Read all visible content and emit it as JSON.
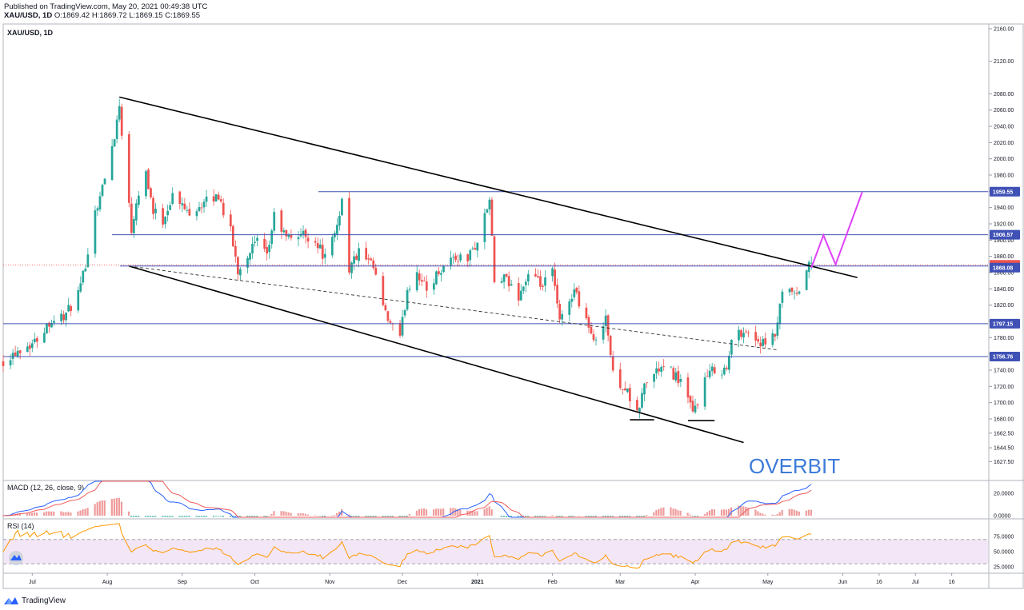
{
  "header": {
    "published_line": "Published on TradingView.com, May 20, 2021 00:49:38 UTC",
    "symbol_line": "XAU/USD, 1D",
    "ohlc_line": "O:1869.42 H:1869.72 L:1869.15 C:1869.55"
  },
  "footer": {
    "brand": "TradingView",
    "logo_icon": "tradingview-logo-icon"
  },
  "watermark": "OVERBIT",
  "colors": {
    "up": "#26a69a",
    "down": "#ef5350",
    "level_line": "#3f51b5",
    "trend_line": "#000000",
    "projection": "#e040fb",
    "watermark": "#3d7bd9",
    "macd_line": "#2962ff",
    "signal_line": "#f05858",
    "rsi_line": "#ff9800",
    "rsi_band": "#f3e6f6"
  },
  "chart_data": [
    {
      "type": "candlestick",
      "title": "XAU/USD, 1D",
      "label": "XAU/USD, 1D",
      "ylim": [
        1620,
        2165
      ],
      "y_ticks": [
        1627.5,
        1644.5,
        1662.5,
        1680.0,
        1700.0,
        1720.0,
        1740.0,
        1760.0,
        1780.0,
        1800.0,
        1820.0,
        1840.0,
        1860.0,
        1880.0,
        1900.0,
        1920.0,
        1940.0,
        1960.0,
        1980.0,
        2000.0,
        2020.0,
        2040.0,
        2060.0,
        2080.0,
        2120.0,
        2160.0
      ],
      "x_tick_labels": [
        "Jul",
        "Aug",
        "Sep",
        "Oct",
        "Nov",
        "Dec",
        "2021",
        "Feb",
        "Mar",
        "Apr",
        "May",
        "Jun",
        "16",
        "Jul",
        "16"
      ],
      "x_tick_dates": [
        "2020-07-01",
        "2020-08-01",
        "2020-09-01",
        "2020-10-01",
        "2020-11-01",
        "2020-12-01",
        "2021-01-01",
        "2021-02-01",
        "2021-03-01",
        "2021-04-01",
        "2021-05-01",
        "2021-06-01",
        "2021-06-16",
        "2021-07-01",
        "2021-07-16"
      ],
      "x_range": [
        "2020-06-19",
        "2021-07-31"
      ],
      "price_anchors": [
        [
          "2020-06-19",
          1752
        ],
        [
          "2020-06-25",
          1765
        ],
        [
          "2020-07-02",
          1775
        ],
        [
          "2020-07-08",
          1800
        ],
        [
          "2020-07-15",
          1808
        ],
        [
          "2020-07-21",
          1840
        ],
        [
          "2020-07-27",
          1935
        ],
        [
          "2020-07-31",
          1975
        ],
        [
          "2020-08-04",
          2030
        ],
        [
          "2020-08-06",
          2065
        ],
        [
          "2020-08-07",
          2035
        ],
        [
          "2020-08-11",
          1912
        ],
        [
          "2020-08-13",
          1950
        ],
        [
          "2020-08-17",
          1985
        ],
        [
          "2020-08-20",
          1935
        ],
        [
          "2020-08-24",
          1925
        ],
        [
          "2020-08-28",
          1955
        ],
        [
          "2020-09-03",
          1935
        ],
        [
          "2020-09-10",
          1945
        ],
        [
          "2020-09-16",
          1955
        ],
        [
          "2020-09-21",
          1910
        ],
        [
          "2020-09-24",
          1862
        ],
        [
          "2020-09-29",
          1888
        ],
        [
          "2020-10-02",
          1898
        ],
        [
          "2020-10-06",
          1878
        ],
        [
          "2020-10-09",
          1930
        ],
        [
          "2020-10-14",
          1902
        ],
        [
          "2020-10-20",
          1908
        ],
        [
          "2020-10-26",
          1900
        ],
        [
          "2020-10-30",
          1878
        ],
        [
          "2020-11-03",
          1905
        ],
        [
          "2020-11-06",
          1950
        ],
        [
          "2020-11-09",
          1865
        ],
        [
          "2020-11-13",
          1885
        ],
        [
          "2020-11-19",
          1865
        ],
        [
          "2020-11-24",
          1807
        ],
        [
          "2020-11-30",
          1778
        ],
        [
          "2020-12-03",
          1840
        ],
        [
          "2020-12-07",
          1862
        ],
        [
          "2020-12-11",
          1838
        ],
        [
          "2020-12-16",
          1862
        ],
        [
          "2020-12-21",
          1878
        ],
        [
          "2020-12-28",
          1878
        ],
        [
          "2021-01-01",
          1898
        ],
        [
          "2021-01-06",
          1950
        ],
        [
          "2021-01-08",
          1848
        ],
        [
          "2021-01-12",
          1852
        ],
        [
          "2021-01-18",
          1832
        ],
        [
          "2021-01-22",
          1856
        ],
        [
          "2021-01-28",
          1843
        ],
        [
          "2021-02-01",
          1862
        ],
        [
          "2021-02-04",
          1798
        ],
        [
          "2021-02-10",
          1840
        ],
        [
          "2021-02-16",
          1795
        ],
        [
          "2021-02-18",
          1772
        ],
        [
          "2021-02-23",
          1808
        ],
        [
          "2021-02-26",
          1734
        ],
        [
          "2021-03-03",
          1718
        ],
        [
          "2021-03-08",
          1684
        ],
        [
          "2021-03-11",
          1722
        ],
        [
          "2021-03-17",
          1742
        ],
        [
          "2021-03-22",
          1738
        ],
        [
          "2021-03-26",
          1727
        ],
        [
          "2021-03-31",
          1686
        ],
        [
          "2021-04-05",
          1728
        ],
        [
          "2021-04-09",
          1742
        ],
        [
          "2021-04-14",
          1740
        ],
        [
          "2021-04-16",
          1776
        ],
        [
          "2021-04-21",
          1790
        ],
        [
          "2021-04-26",
          1778
        ],
        [
          "2021-04-30",
          1770
        ],
        [
          "2021-05-04",
          1782
        ],
        [
          "2021-05-07",
          1832
        ],
        [
          "2021-05-11",
          1836
        ],
        [
          "2021-05-13",
          1828
        ],
        [
          "2021-05-17",
          1866
        ],
        [
          "2021-05-19",
          1869.55
        ]
      ],
      "horizontal_levels": [
        1959.55,
        1906.57,
        1869.55,
        1868.08,
        1797.15,
        1756.76
      ],
      "price_labels": [
        "1959.55",
        "1906.57",
        "1869.55",
        "1868.08",
        "1797.15",
        "1756.76"
      ],
      "trend_lines": [
        {
          "from": [
            "2020-08-06",
            2076
          ],
          "to": [
            "2021-06-07",
            1854
          ]
        },
        {
          "from": [
            "2020-08-10",
            1868
          ],
          "to": [
            "2021-04-21",
            1651
          ]
        }
      ],
      "dashed_trend_line": {
        "from": [
          "2020-08-10",
          1868
        ],
        "to": [
          "2021-05-05",
          1765
        ]
      },
      "double_bottom_marks": [
        {
          "from": [
            "2021-03-05",
            1679
          ],
          "to": [
            "2021-03-15",
            1679
          ]
        },
        {
          "from": [
            "2021-03-29",
            1678
          ],
          "to": [
            "2021-04-09",
            1678
          ]
        }
      ],
      "projection_path": [
        [
          "2021-05-19",
          1866
        ],
        [
          "2021-05-24",
          1906
        ],
        [
          "2021-05-29",
          1870
        ],
        [
          "2021-06-09",
          1959
        ]
      ]
    },
    {
      "type": "line",
      "title": "MACD (12, 26, close, 9)",
      "label": "MACD (12, 26, close, 9)",
      "y_ticks": [
        20.0,
        0.0
      ],
      "y_tick_labels": [
        "20.0000",
        "0.0000"
      ]
    },
    {
      "type": "line",
      "title": "RSI (14)",
      "label": "RSI (14)",
      "ylim": [
        20,
        90
      ],
      "y_ticks": [
        75,
        50,
        25
      ],
      "y_tick_labels": [
        "75.0000",
        "50.0000",
        "25.0000"
      ],
      "band": [
        30,
        70
      ]
    }
  ]
}
